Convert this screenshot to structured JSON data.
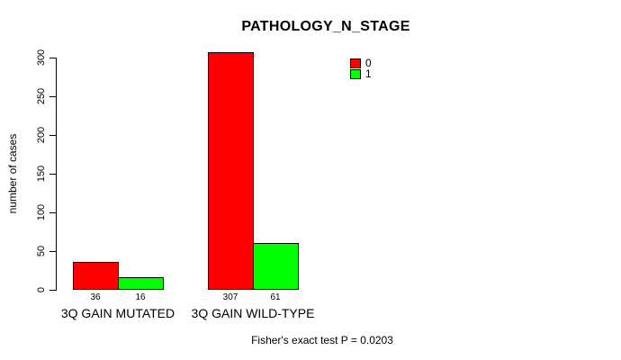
{
  "chart_data": {
    "type": "bar",
    "title": "PATHOLOGY_N_STAGE",
    "xlabel": "",
    "ylabel": "number of cases",
    "categories": [
      "3Q GAIN MUTATED",
      "3Q GAIN WILD-TYPE"
    ],
    "series": [
      {
        "name": "0",
        "color": "#ff0000",
        "values": [
          36,
          307
        ]
      },
      {
        "name": "1",
        "color": "#00ff00",
        "values": [
          16,
          61
        ]
      }
    ],
    "yticks": [
      0,
      50,
      100,
      150,
      200,
      250,
      300
    ],
    "ylim": [
      0,
      310
    ],
    "grid": false,
    "legend_position": "top-right",
    "bar_border_color": "#000000",
    "footnote": "Fisher's exact test P = 0.0203"
  }
}
